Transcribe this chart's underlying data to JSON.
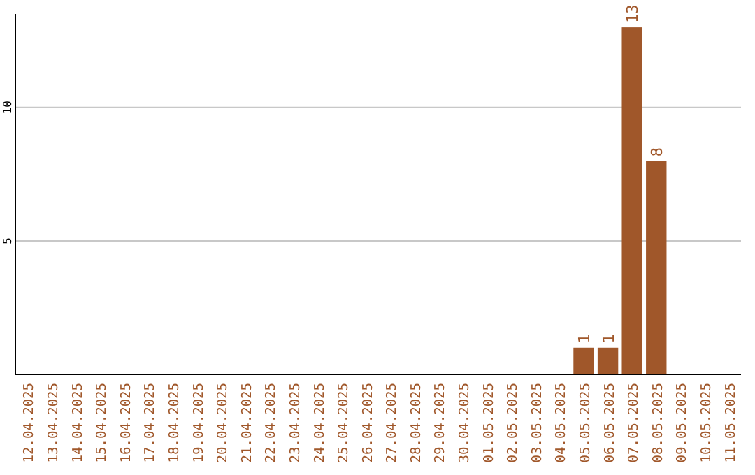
{
  "chart_data": {
    "type": "bar",
    "categories": [
      "12.04.2025",
      "13.04.2025",
      "14.04.2025",
      "15.04.2025",
      "16.04.2025",
      "17.04.2025",
      "18.04.2025",
      "19.04.2025",
      "20.04.2025",
      "21.04.2025",
      "22.04.2025",
      "23.04.2025",
      "24.04.2025",
      "25.04.2025",
      "26.04.2025",
      "27.04.2025",
      "28.04.2025",
      "29.04.2025",
      "30.04.2025",
      "01.05.2025",
      "02.05.2025",
      "03.05.2025",
      "04.05.2025",
      "05.05.2025",
      "06.05.2025",
      "07.05.2025",
      "08.05.2025",
      "09.05.2025",
      "10.05.2025",
      "11.05.2025"
    ],
    "values": [
      0,
      0,
      0,
      0,
      0,
      0,
      0,
      0,
      0,
      0,
      0,
      0,
      0,
      0,
      0,
      0,
      0,
      0,
      0,
      0,
      0,
      0,
      0,
      1,
      1,
      13,
      8,
      0,
      0,
      0
    ],
    "value_labels": [
      null,
      null,
      null,
      null,
      null,
      null,
      null,
      null,
      null,
      null,
      null,
      null,
      null,
      null,
      null,
      null,
      null,
      null,
      null,
      null,
      null,
      null,
      null,
      "1",
      "1",
      "13",
      "8",
      null,
      null,
      null
    ],
    "color": "#a0572a",
    "ylim": [
      0,
      13.5
    ],
    "yticks": [
      5,
      10
    ],
    "grid": "y"
  }
}
